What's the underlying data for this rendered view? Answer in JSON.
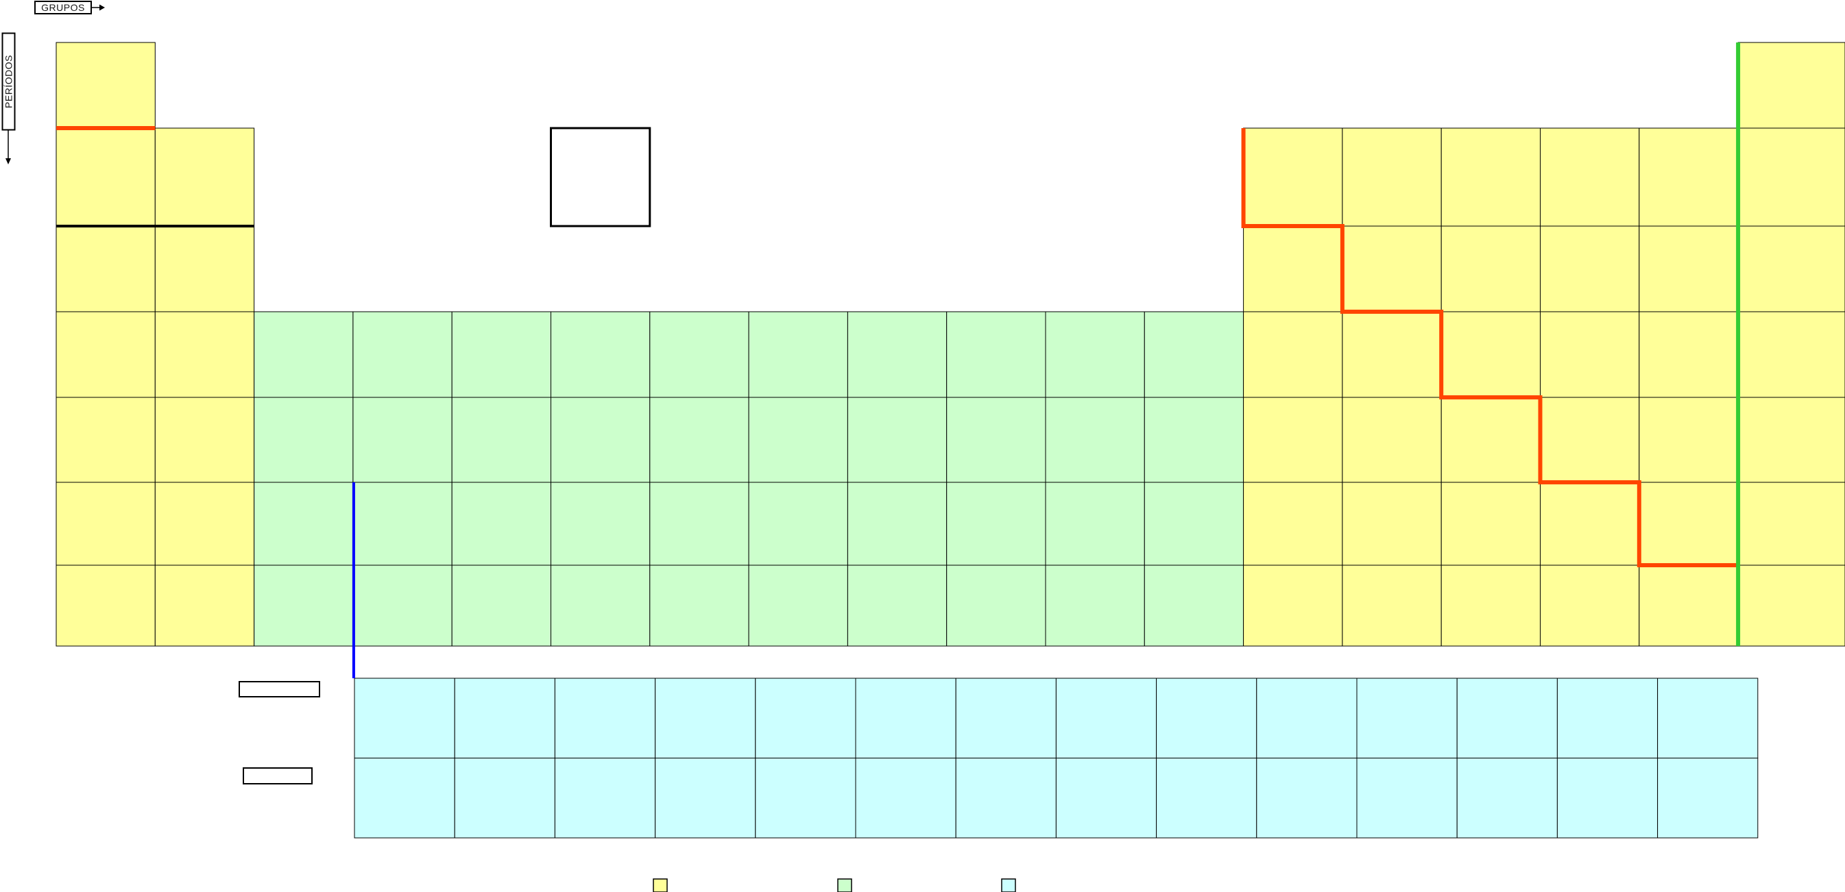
{
  "labels": {
    "groups_axis": "GRUPOS",
    "periods_axis": "PERÍODOS"
  },
  "blocks": {
    "representative": {
      "color": "#FFFF99"
    },
    "transition": {
      "color": "#CCFFCC"
    },
    "inner_transition": {
      "color": "#CCFFFF"
    }
  },
  "lines": {
    "grid_color": "#000000",
    "metal_nonmetal_staircase_color": "#FF4500",
    "hydrogen_divider_color": "#FF4500",
    "noble_gas_separator_color": "#33CC33",
    "f_block_connector_color": "#0000FF",
    "emphasis_segment_color": "#000000"
  },
  "structure": {
    "groups": 18,
    "periods": 7,
    "f_block_rows": 2,
    "f_block_columns": 14,
    "empty_sample_cell": {
      "period": 2,
      "group": 6
    },
    "empty_side_label_boxes": 2,
    "all_cells_blank": true
  },
  "legend": {
    "swatches": [
      {
        "name": "representative-elements",
        "color": "#FFFF99"
      },
      {
        "name": "transition-elements",
        "color": "#CCFFCC"
      },
      {
        "name": "inner-transition-elements",
        "color": "#CCFFFF"
      }
    ]
  }
}
